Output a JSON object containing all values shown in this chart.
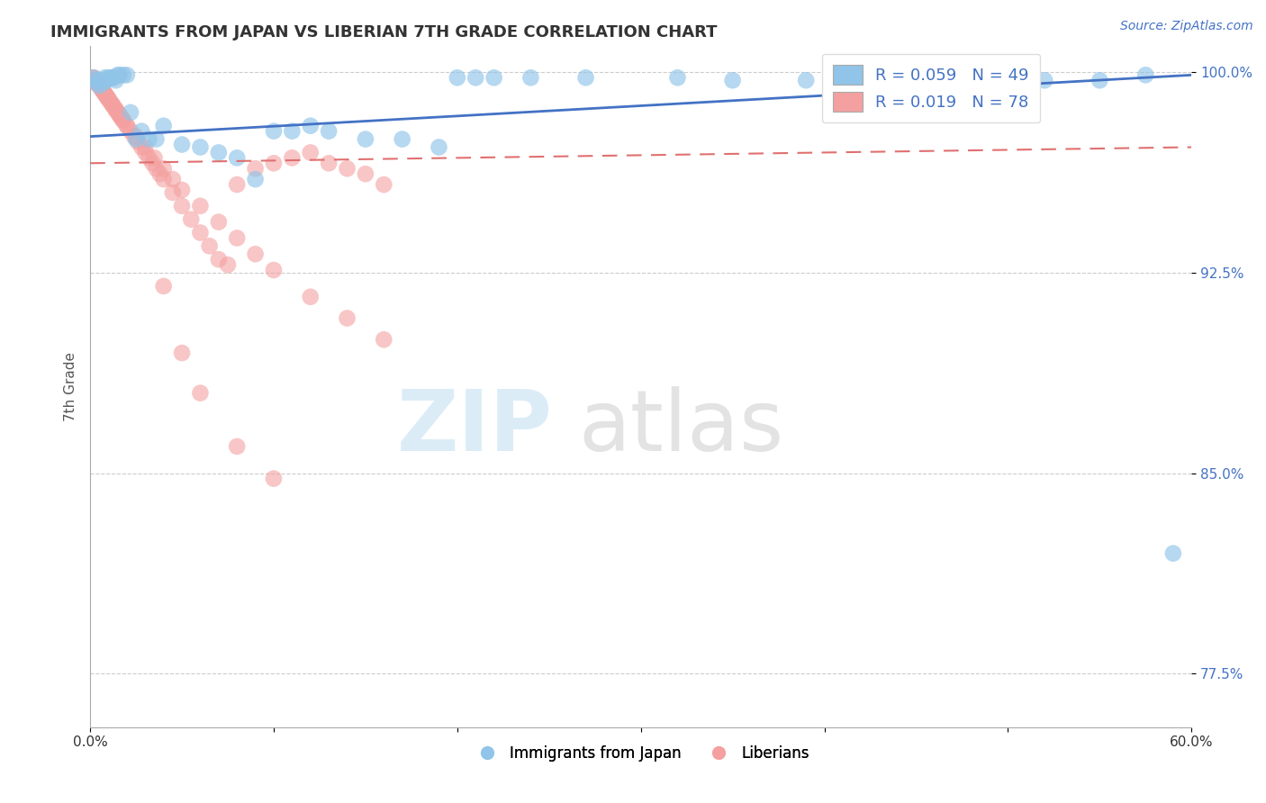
{
  "title": "IMMIGRANTS FROM JAPAN VS LIBERIAN 7TH GRADE CORRELATION CHART",
  "source": "Source: ZipAtlas.com",
  "xlabel_blue": "Immigrants from Japan",
  "xlabel_pink": "Liberians",
  "ylabel": "7th Grade",
  "xlim": [
    0.0,
    0.6
  ],
  "ylim": [
    0.755,
    1.01
  ],
  "yticks": [
    0.775,
    0.85,
    0.925,
    1.0
  ],
  "yticklabels": [
    "77.5%",
    "85.0%",
    "92.5%",
    "100.0%"
  ],
  "blue_R": 0.059,
  "blue_N": 49,
  "pink_R": 0.019,
  "pink_N": 78,
  "blue_color": "#90c4e8",
  "pink_color": "#f4a0a0",
  "blue_line_color": "#4472c4",
  "pink_line_color": "#e07070",
  "blue_line_y0": 0.976,
  "blue_line_y1": 0.999,
  "pink_line_y0": 0.966,
  "pink_line_y1": 0.972,
  "blue_scatter_x": [
    0.002,
    0.003,
    0.004,
    0.005,
    0.006,
    0.007,
    0.008,
    0.009,
    0.01,
    0.011,
    0.012,
    0.013,
    0.014,
    0.015,
    0.016,
    0.018,
    0.02,
    0.022,
    0.025,
    0.028,
    0.032,
    0.036,
    0.04,
    0.05,
    0.06,
    0.07,
    0.08,
    0.09,
    0.1,
    0.11,
    0.12,
    0.13,
    0.15,
    0.17,
    0.19,
    0.2,
    0.21,
    0.22,
    0.24,
    0.27,
    0.32,
    0.35,
    0.39,
    0.43,
    0.49,
    0.52,
    0.55,
    0.575,
    0.59
  ],
  "blue_scatter_y": [
    0.998,
    0.997,
    0.996,
    0.995,
    0.997,
    0.996,
    0.998,
    0.997,
    0.998,
    0.998,
    0.998,
    0.998,
    0.997,
    0.999,
    0.999,
    0.999,
    0.999,
    0.985,
    0.975,
    0.978,
    0.975,
    0.975,
    0.98,
    0.973,
    0.972,
    0.97,
    0.968,
    0.96,
    0.978,
    0.978,
    0.98,
    0.978,
    0.975,
    0.975,
    0.972,
    0.998,
    0.998,
    0.998,
    0.998,
    0.998,
    0.998,
    0.997,
    0.997,
    0.999,
    0.997,
    0.997,
    0.997,
    0.999,
    0.82
  ],
  "pink_scatter_x": [
    0.001,
    0.002,
    0.003,
    0.004,
    0.005,
    0.006,
    0.007,
    0.008,
    0.009,
    0.01,
    0.011,
    0.012,
    0.013,
    0.014,
    0.015,
    0.016,
    0.017,
    0.018,
    0.02,
    0.022,
    0.024,
    0.026,
    0.028,
    0.03,
    0.032,
    0.034,
    0.036,
    0.038,
    0.04,
    0.045,
    0.05,
    0.055,
    0.06,
    0.065,
    0.07,
    0.075,
    0.08,
    0.09,
    0.1,
    0.11,
    0.12,
    0.13,
    0.14,
    0.15,
    0.16,
    0.002,
    0.003,
    0.004,
    0.005,
    0.006,
    0.007,
    0.008,
    0.009,
    0.01,
    0.012,
    0.014,
    0.016,
    0.018,
    0.02,
    0.025,
    0.03,
    0.035,
    0.04,
    0.045,
    0.05,
    0.06,
    0.07,
    0.08,
    0.09,
    0.1,
    0.12,
    0.14,
    0.16,
    0.04,
    0.05,
    0.06,
    0.08,
    0.1
  ],
  "pink_scatter_y": [
    0.998,
    0.997,
    0.996,
    0.996,
    0.995,
    0.994,
    0.993,
    0.992,
    0.991,
    0.99,
    0.989,
    0.988,
    0.987,
    0.986,
    0.985,
    0.984,
    0.983,
    0.982,
    0.98,
    0.978,
    0.976,
    0.974,
    0.972,
    0.97,
    0.968,
    0.966,
    0.964,
    0.962,
    0.96,
    0.955,
    0.95,
    0.945,
    0.94,
    0.935,
    0.93,
    0.928,
    0.958,
    0.964,
    0.966,
    0.968,
    0.97,
    0.966,
    0.964,
    0.962,
    0.958,
    0.998,
    0.997,
    0.996,
    0.995,
    0.994,
    0.993,
    0.992,
    0.991,
    0.99,
    0.988,
    0.986,
    0.984,
    0.982,
    0.98,
    0.976,
    0.972,
    0.968,
    0.964,
    0.96,
    0.956,
    0.95,
    0.944,
    0.938,
    0.932,
    0.926,
    0.916,
    0.908,
    0.9,
    0.92,
    0.895,
    0.88,
    0.86,
    0.848
  ]
}
